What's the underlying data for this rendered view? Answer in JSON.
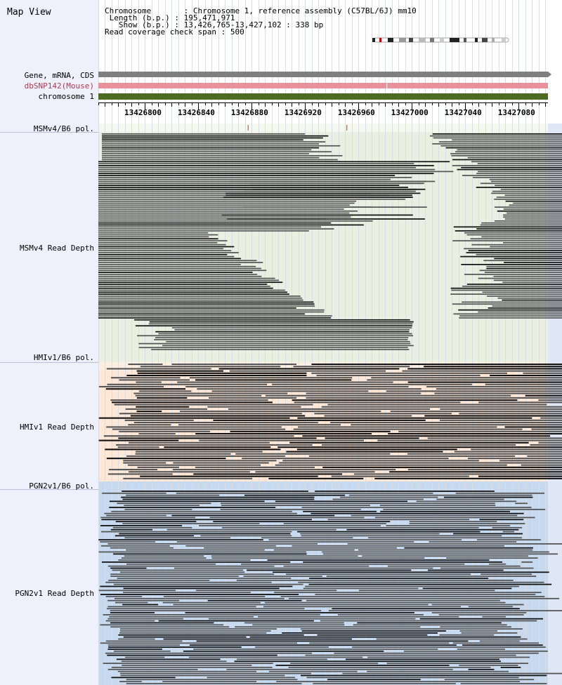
{
  "title": "Map View",
  "info": {
    "chromosome_key": "Chromosome",
    "chromosome_val": "Chromosome 1, reference assembly (C57BL/6J) mm10",
    "length_key": "Length (b.p.)",
    "length_val": "195,471,971",
    "show_key": "Show (b.p.)",
    "show_val": "13,426,765-13,427,102 : 338 bp",
    "span_key": "Read coverage check span",
    "span_val": "500"
  },
  "tracks": {
    "gene": "Gene, mRNA, CDS",
    "snp": "dbSNP142(Mouse)",
    "chrom": "chromosome 1"
  },
  "ruler": {
    "ticks": [
      13426800,
      13426840,
      13426880,
      13426920,
      13426960,
      13427000,
      13427040,
      13427080
    ],
    "range": [
      13426765,
      13427102
    ]
  },
  "panels": [
    {
      "pol_label": "MSMv4/B6 pol.",
      "depth_label": "MSMv4 Read Depth",
      "bg": "#e9f0e1",
      "polbg": "#f4f8ee"
    },
    {
      "pol_label": "HMIv1/B6 pol.",
      "depth_label": "HMIv1 Read Depth",
      "bg": "#fde8d8",
      "polbg": "#fdeee2"
    },
    {
      "pol_label": "PGN2v1/B6 pol.",
      "depth_label": "PGN2v1 Read Depth",
      "bg": "#c6d9ef",
      "polbg": "#c6d9ef"
    }
  ],
  "colors": {
    "gene": "#7f7f7f",
    "snp": "#e8909c",
    "chrom": "#4e6b22",
    "read": "#555555",
    "read_dark": "#111111",
    "left": "#eef0fb"
  }
}
